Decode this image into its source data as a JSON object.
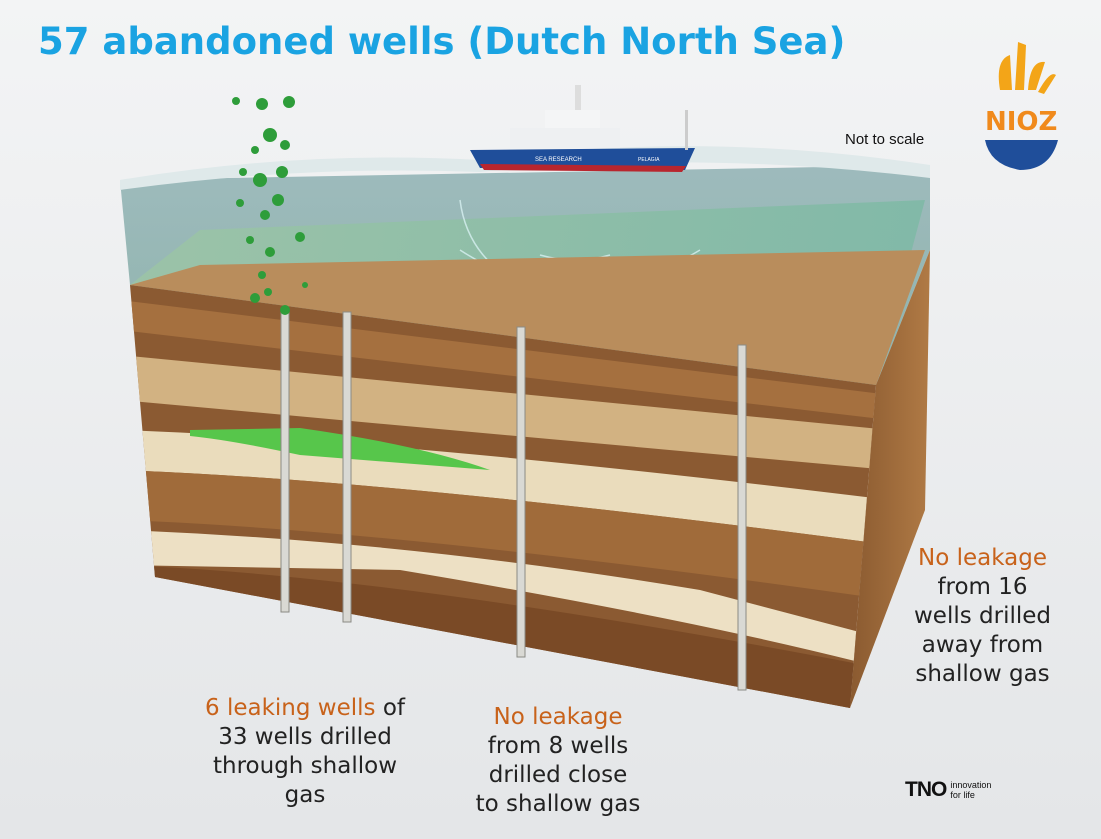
{
  "title": "57 abandoned wells (Dutch North Sea)",
  "note": "Not to scale",
  "logos": {
    "nioz": "NIOZ",
    "tno": "TNO",
    "tno_tagline": [
      "innovation",
      "for life"
    ]
  },
  "ship": {
    "labels": [
      "SEA RESEARCH",
      "PELAGIA"
    ]
  },
  "annotations": [
    {
      "highlight": "6 leaking wells",
      "after_highlight": "of",
      "lines": [
        "33 wells drilled",
        "through shallow",
        "gas"
      ]
    },
    {
      "highlight": "No leakage",
      "lines": [
        "from 8 wells",
        "drilled close",
        "to shallow gas"
      ]
    },
    {
      "highlight": "No leakage",
      "lines": [
        "from 16",
        "wells drilled",
        "away from",
        "shallow gas"
      ]
    }
  ]
}
